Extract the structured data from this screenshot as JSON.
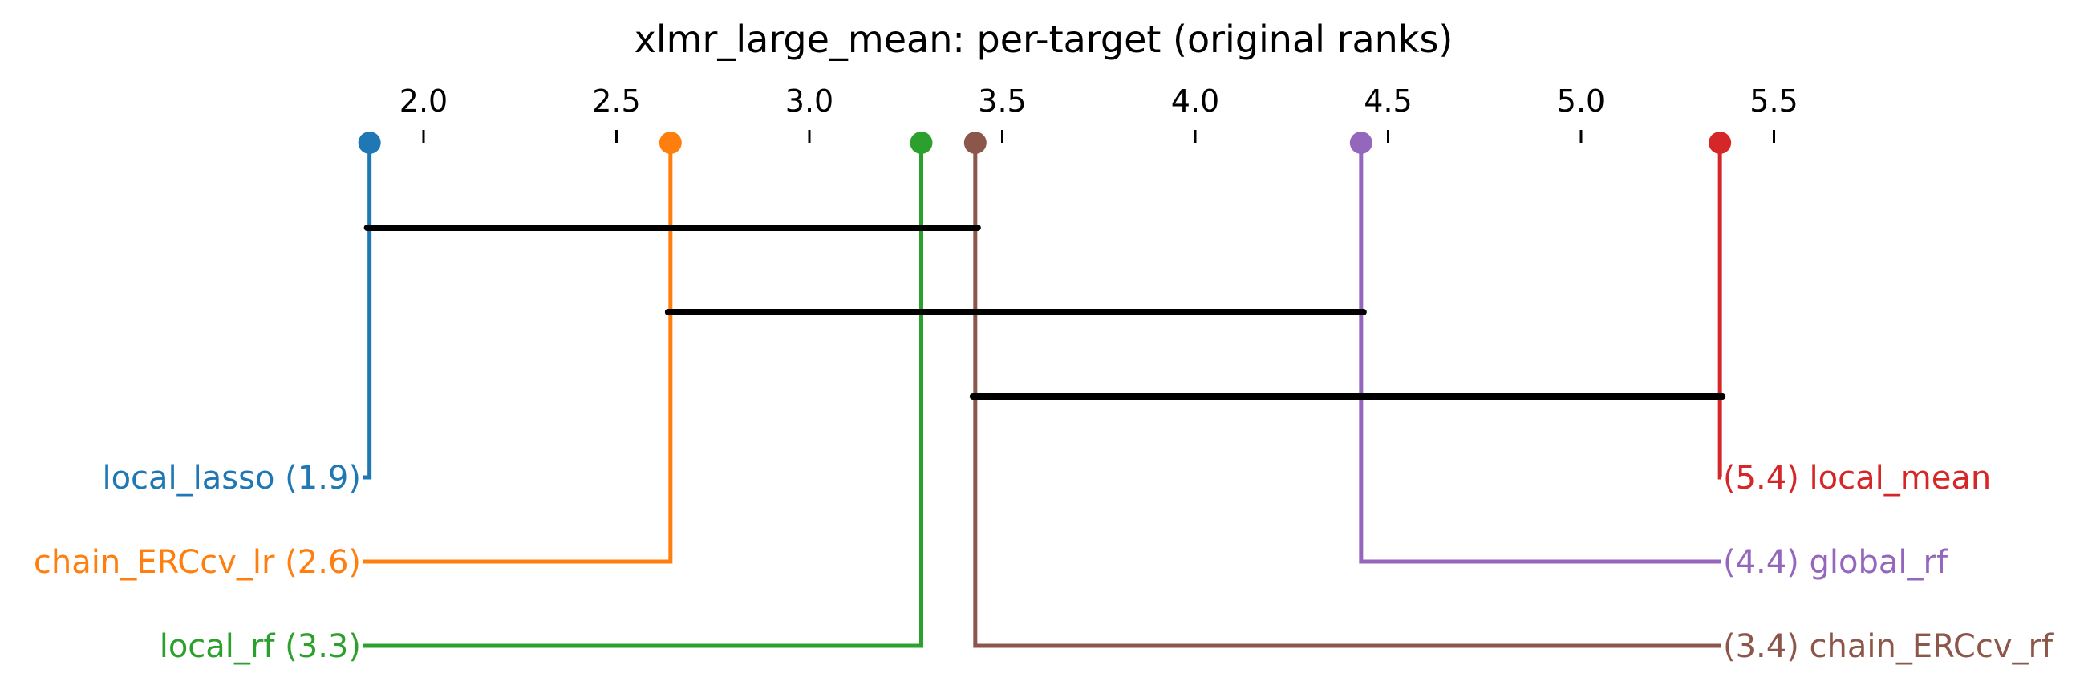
{
  "chart_data": {
    "type": "critical-difference",
    "title": "xlmr_large_mean: per-target (original ranks)",
    "axis": {
      "range": [
        1.86,
        5.36
      ],
      "ticks": [
        "2.0",
        "2.5",
        "3.0",
        "3.5",
        "4.0",
        "4.5",
        "5.0",
        "5.5"
      ],
      "tick_values": [
        2.0,
        2.5,
        3.0,
        3.5,
        4.0,
        4.5,
        5.0,
        5.5
      ]
    },
    "methods": [
      {
        "name": "local_lasso",
        "rank": 1.86,
        "rank_label": "1.9",
        "label": "local_lasso (1.9)",
        "side": "left",
        "color": "#1f77b4"
      },
      {
        "name": "chain_ERCcv_lr",
        "rank": 2.64,
        "rank_label": "2.6",
        "label": "chain_ERCcv_lr (2.6)",
        "side": "left",
        "color": "#ff7f0e"
      },
      {
        "name": "local_rf",
        "rank": 3.29,
        "rank_label": "3.3",
        "label": "local_rf (3.3)",
        "side": "left",
        "color": "#2ca02c"
      },
      {
        "name": "chain_ERCcv_rf",
        "rank": 3.43,
        "rank_label": "3.4",
        "label": "(3.4) chain_ERCcv_rf",
        "side": "right",
        "color": "#8c564b"
      },
      {
        "name": "global_rf",
        "rank": 4.43,
        "rank_label": "4.4",
        "label": "(4.4) global_rf",
        "side": "right",
        "color": "#9467bd"
      },
      {
        "name": "local_mean",
        "rank": 5.36,
        "rank_label": "5.4",
        "label": "(5.4) local_mean",
        "side": "right",
        "color": "#d62728"
      }
    ],
    "cliques": [
      {
        "from": 1.86,
        "to": 3.43
      },
      {
        "from": 2.64,
        "to": 4.43
      },
      {
        "from": 3.43,
        "to": 5.36
      }
    ],
    "grid": false,
    "legend": "none"
  }
}
